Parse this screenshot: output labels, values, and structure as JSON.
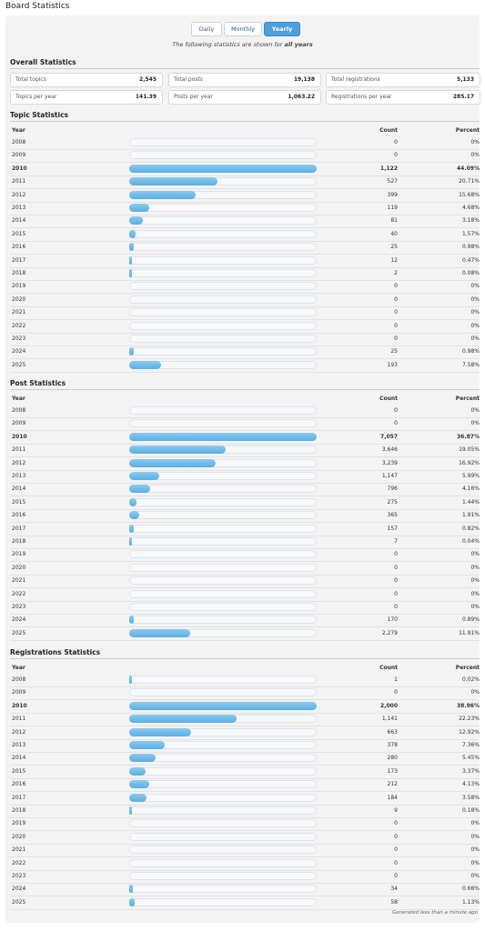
{
  "header": {
    "title": "Board Statistics"
  },
  "tabs": [
    "Daily",
    "Monthly",
    "Yearly"
  ],
  "active_tab": 2,
  "subtitle": {
    "text": "The following statistics are shown for",
    "emphasis": "all years"
  },
  "overall": {
    "title": "Overall Statistics",
    "items": [
      {
        "label": "Total topics",
        "value": "2,545"
      },
      {
        "label": "Total posts",
        "value": "19,138"
      },
      {
        "label": "Total registrations",
        "value": "5,133"
      },
      {
        "label": "Topics per year",
        "value": "141.39"
      },
      {
        "label": "Posts per year",
        "value": "1,063.22"
      },
      {
        "label": "Registrations per year",
        "value": "285.17"
      }
    ]
  },
  "sections": [
    {
      "title": "Topic Statistics",
      "columns": [
        "Year",
        "Count",
        "Percent"
      ],
      "rows": [
        {
          "year": "2008",
          "count": 0,
          "percent": "0%"
        },
        {
          "year": "2009",
          "count": 0,
          "percent": "0%"
        },
        {
          "year": "2010",
          "count": {
            "value": 1122,
            "label": "1,122"
          },
          "percent": "44.09%"
        },
        {
          "year": "2011",
          "count": 527,
          "percent": "20.71%"
        },
        {
          "year": "2012",
          "count": 399,
          "percent": "15.68%"
        },
        {
          "year": "2013",
          "count": 119,
          "percent": "4.68%"
        },
        {
          "year": "2014",
          "count": 81,
          "percent": "3.18%"
        },
        {
          "year": "2015",
          "count": 40,
          "percent": "1.57%"
        },
        {
          "year": "2016",
          "count": 25,
          "percent": "0.98%"
        },
        {
          "year": "2017",
          "count": 12,
          "percent": "0.47%"
        },
        {
          "year": "2018",
          "count": 2,
          "percent": "0.08%"
        },
        {
          "year": "2019",
          "count": 0,
          "percent": "0%"
        },
        {
          "year": "2020",
          "count": 0,
          "percent": "0%"
        },
        {
          "year": "2021",
          "count": 0,
          "percent": "0%"
        },
        {
          "year": "2022",
          "count": 0,
          "percent": "0%"
        },
        {
          "year": "2023",
          "count": 0,
          "percent": "0%"
        },
        {
          "year": "2024",
          "count": 25,
          "percent": "0.98%"
        },
        {
          "year": "2025",
          "count": 193,
          "percent": "7.58%"
        }
      ]
    },
    {
      "title": "Post Statistics",
      "columns": [
        "Year",
        "Count",
        "Percent"
      ],
      "rows": [
        {
          "year": "2008",
          "count": 0,
          "percent": "0%"
        },
        {
          "year": "2009",
          "count": 0,
          "percent": "0%"
        },
        {
          "year": "2010",
          "count": {
            "value": 7057,
            "label": "7,057"
          },
          "percent": "36.87%"
        },
        {
          "year": "2011",
          "count": {
            "value": 3646,
            "label": "3,646"
          },
          "percent": "19.05%"
        },
        {
          "year": "2012",
          "count": {
            "value": 3239,
            "label": "3,239"
          },
          "percent": "16.92%"
        },
        {
          "year": "2013",
          "count": {
            "value": 1147,
            "label": "1,147"
          },
          "percent": "5.99%"
        },
        {
          "year": "2014",
          "count": 796,
          "percent": "4.16%"
        },
        {
          "year": "2015",
          "count": 275,
          "percent": "1.44%"
        },
        {
          "year": "2016",
          "count": 365,
          "percent": "1.91%"
        },
        {
          "year": "2017",
          "count": 157,
          "percent": "0.82%"
        },
        {
          "year": "2018",
          "count": 7,
          "percent": "0.04%"
        },
        {
          "year": "2019",
          "count": 0,
          "percent": "0%"
        },
        {
          "year": "2020",
          "count": 0,
          "percent": "0%"
        },
        {
          "year": "2021",
          "count": 0,
          "percent": "0%"
        },
        {
          "year": "2022",
          "count": 0,
          "percent": "0%"
        },
        {
          "year": "2023",
          "count": 0,
          "percent": "0%"
        },
        {
          "year": "2024",
          "count": 170,
          "percent": "0.89%"
        },
        {
          "year": "2025",
          "count": {
            "value": 2279,
            "label": "2,279"
          },
          "percent": "11.91%"
        }
      ]
    },
    {
      "title": "Registrations Statistics",
      "columns": [
        "Year",
        "Count",
        "Percent"
      ],
      "rows": [
        {
          "year": "2008",
          "count": 1,
          "percent": "0.02%"
        },
        {
          "year": "2009",
          "count": 0,
          "percent": "0%"
        },
        {
          "year": "2010",
          "count": {
            "value": 2000,
            "label": "2,000"
          },
          "percent": "38.96%"
        },
        {
          "year": "2011",
          "count": {
            "value": 1141,
            "label": "1,141"
          },
          "percent": "22.23%"
        },
        {
          "year": "2012",
          "count": 663,
          "percent": "12.92%"
        },
        {
          "year": "2013",
          "count": 378,
          "percent": "7.36%"
        },
        {
          "year": "2014",
          "count": 280,
          "percent": "5.45%"
        },
        {
          "year": "2015",
          "count": 173,
          "percent": "3.37%"
        },
        {
          "year": "2016",
          "count": 212,
          "percent": "4.13%"
        },
        {
          "year": "2017",
          "count": 184,
          "percent": "3.58%"
        },
        {
          "year": "2018",
          "count": 9,
          "percent": "0.18%"
        },
        {
          "year": "2019",
          "count": 0,
          "percent": "0%"
        },
        {
          "year": "2020",
          "count": 0,
          "percent": "0%"
        },
        {
          "year": "2021",
          "count": 0,
          "percent": "0%"
        },
        {
          "year": "2022",
          "count": 0,
          "percent": "0%"
        },
        {
          "year": "2023",
          "count": 0,
          "percent": "0%"
        },
        {
          "year": "2024",
          "count": 34,
          "percent": "0.66%"
        },
        {
          "year": "2025",
          "count": 58,
          "percent": "1.13%"
        }
      ]
    }
  ],
  "footer": "Generated less than a minute ago"
}
